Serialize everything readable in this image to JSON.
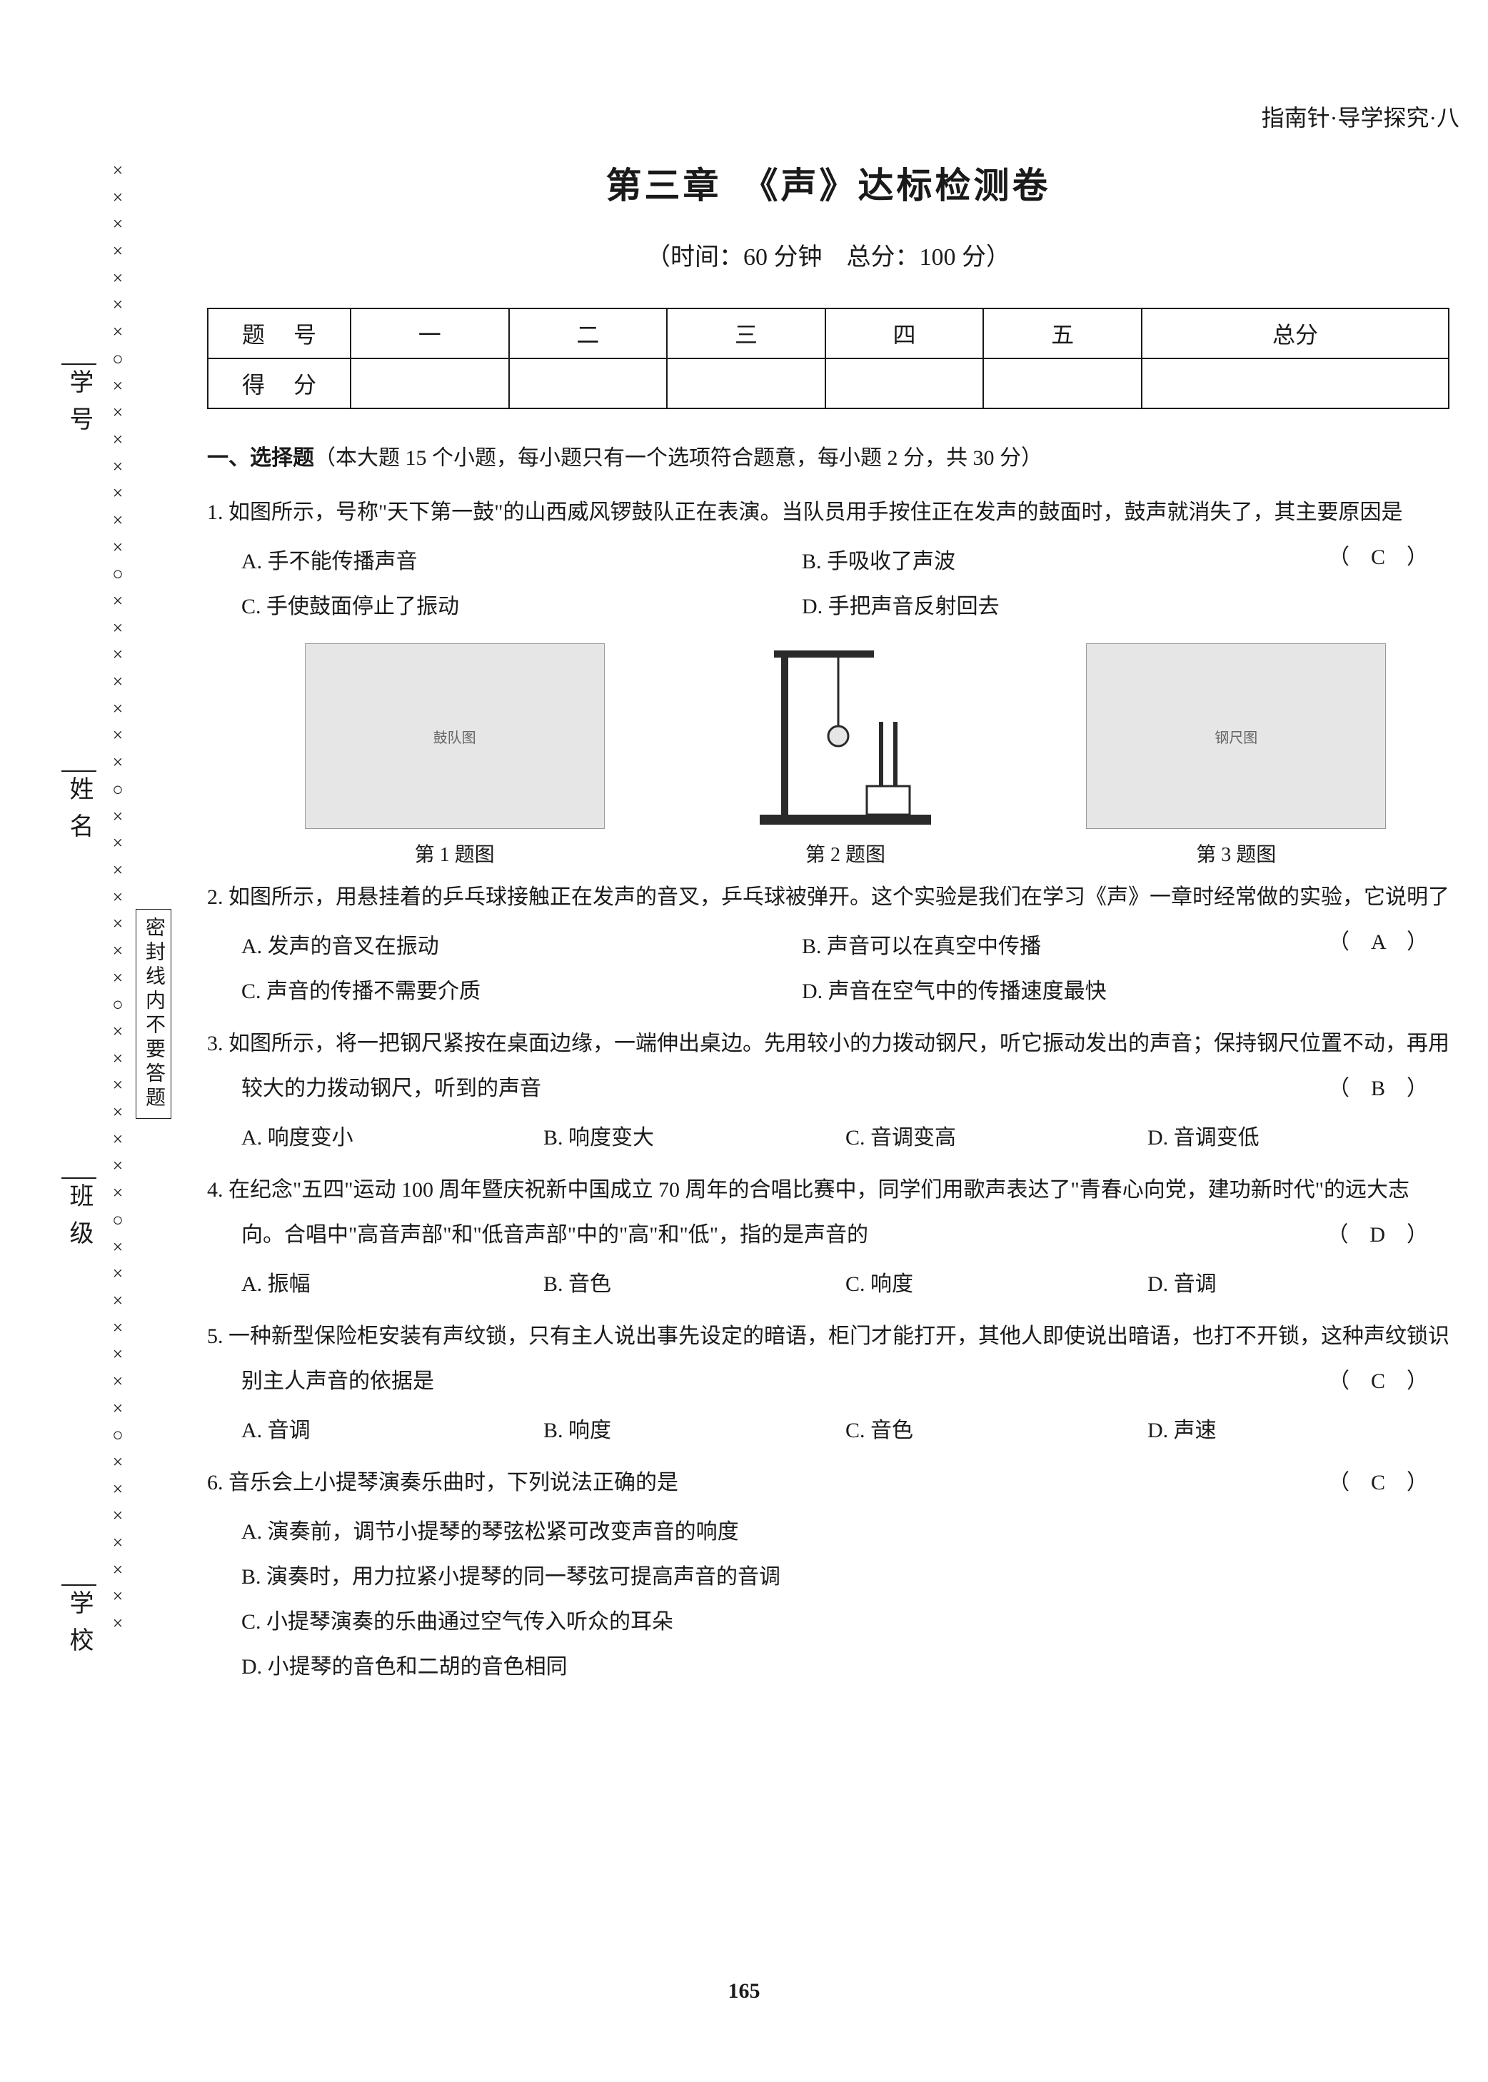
{
  "header_right": "指南针·导学探究·八",
  "title": "第三章　《声》达标检测卷",
  "subtitle": "（时间：60 分钟　总分：100 分）",
  "score_table": {
    "row1": [
      "题号",
      "一",
      "二",
      "三",
      "四",
      "五",
      "总分"
    ],
    "row2_label": "得分"
  },
  "section1_head_bold": "一、选择题",
  "section1_head_rest": "（本大题 15 个小题，每小题只有一个选项符合题意，每小题 2 分，共 30 分）",
  "q1": {
    "num": "1.",
    "text": "如图所示，号称\"天下第一鼓\"的山西威风锣鼓队正在表演。当队员用手按住正在发声的鼓面时，鼓声就消失了，其主要原因是",
    "answer": "（　C　）",
    "opts": {
      "A": "A. 手不能传播声音",
      "B": "B. 手吸收了声波",
      "C": "C. 手使鼓面停止了振动",
      "D": "D. 手把声音反射回去"
    }
  },
  "figcaps": {
    "f1": "第 1 题图",
    "f2": "第 2 题图",
    "f3": "第 3 题图"
  },
  "q2": {
    "num": "2.",
    "text": "如图所示，用悬挂着的乒乓球接触正在发声的音叉，乒乓球被弹开。这个实验是我们在学习《声》一章时经常做的实验，它说明了",
    "answer": "（　A　）",
    "opts": {
      "A": "A. 发声的音叉在振动",
      "B": "B. 声音可以在真空中传播",
      "C": "C. 声音的传播不需要介质",
      "D": "D. 声音在空气中的传播速度最快"
    }
  },
  "q3": {
    "num": "3.",
    "text": "如图所示，将一把钢尺紧按在桌面边缘，一端伸出桌边。先用较小的力拨动钢尺，听它振动发出的声音；保持钢尺位置不动，再用较大的力拨动钢尺，听到的声音",
    "answer": "（　B　）",
    "opts": {
      "A": "A. 响度变小",
      "B": "B. 响度变大",
      "C": "C. 音调变高",
      "D": "D. 音调变低"
    }
  },
  "q4": {
    "num": "4.",
    "text": "在纪念\"五四\"运动 100 周年暨庆祝新中国成立 70 周年的合唱比赛中，同学们用歌声表达了\"青春心向党，建功新时代\"的远大志向。合唱中\"高音声部\"和\"低音声部\"中的\"高\"和\"低\"，指的是声音的",
    "answer": "（　D　）",
    "opts": {
      "A": "A. 振幅",
      "B": "B. 音色",
      "C": "C. 响度",
      "D": "D. 音调"
    }
  },
  "q5": {
    "num": "5.",
    "text": "一种新型保险柜安装有声纹锁，只有主人说出事先设定的暗语，柜门才能打开，其他人即使说出暗语，也打不开锁，这种声纹锁识别主人声音的依据是",
    "answer": "（　C　）",
    "opts": {
      "A": "A. 音调",
      "B": "B. 响度",
      "C": "C. 音色",
      "D": "D. 声速"
    }
  },
  "q6": {
    "num": "6.",
    "text": "音乐会上小提琴演奏乐曲时，下列说法正确的是",
    "answer": "（　C　）",
    "opts": {
      "A": "A. 演奏前，调节小提琴的琴弦松紧可改变声音的响度",
      "B": "B. 演奏时，用力拉紧小提琴的同一琴弦可提高声音的音调",
      "C": "C. 小提琴演奏的乐曲通过空气传入听众的耳朵",
      "D": "D. 小提琴的音色和二胡的音色相同"
    }
  },
  "binding_labels": {
    "l1": "学号",
    "l2": "姓名",
    "l3": "班级",
    "l4": "学校"
  },
  "seal_note": "密封线内不要答题",
  "page_number": "165",
  "marks_pattern": "×××××××○×××××××○×××××××○×××××××○×××××××○×××××××○×××××××"
}
